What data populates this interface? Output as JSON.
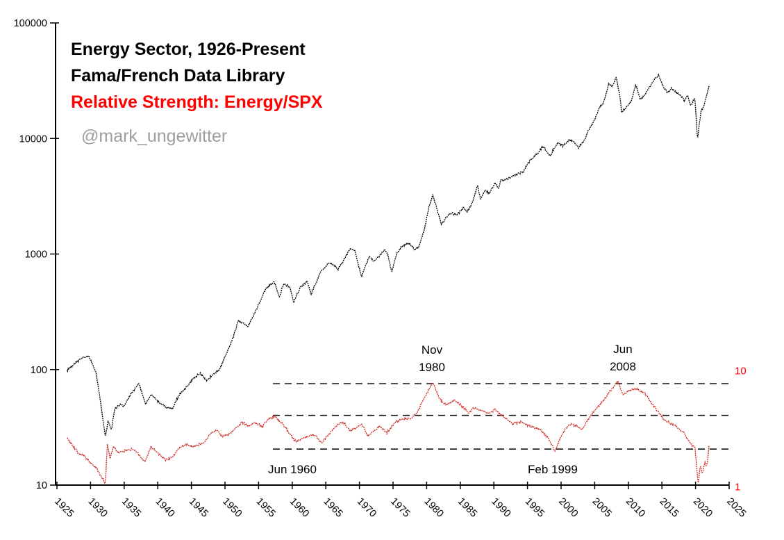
{
  "header": {
    "title_line1": "Energy Sector, 1926-Present",
    "title_line2": "Fama/French Data Library",
    "title_line3": "Relative Strength: Energy/SPX",
    "watermark": "@mark_ungewitter",
    "title_color": "#000000",
    "relative_strength_color": "#ff0000",
    "watermark_color": "#9e9e9e"
  },
  "chart_data": {
    "type": "line",
    "title": "Energy Sector, 1926-Present",
    "subtitle": "Fama/French Data Library",
    "overlay_title": "Relative Strength: Energy/SPX",
    "grid": "off",
    "legend": "none",
    "x_axis": {
      "scale": "linear",
      "range": [
        1925,
        2025
      ],
      "ticks": [
        {
          "v": 1925,
          "label": "1925"
        },
        {
          "v": 1930,
          "label": "1930"
        },
        {
          "v": 1935,
          "label": "1935"
        },
        {
          "v": 1940,
          "label": "1940"
        },
        {
          "v": 1945,
          "label": "1945"
        },
        {
          "v": 1950,
          "label": "1950"
        },
        {
          "v": 1955,
          "label": "1955"
        },
        {
          "v": 1960,
          "label": "1960"
        },
        {
          "v": 1965,
          "label": "1965"
        },
        {
          "v": 1970,
          "label": "1970"
        },
        {
          "v": 1975,
          "label": "1975"
        },
        {
          "v": 1980,
          "label": "1980"
        },
        {
          "v": 1985,
          "label": "1985"
        },
        {
          "v": 1990,
          "label": "1990"
        },
        {
          "v": 1995,
          "label": "1995"
        },
        {
          "v": 2000,
          "label": "2000"
        },
        {
          "v": 2005,
          "label": "2005"
        },
        {
          "v": 2010,
          "label": "2010"
        },
        {
          "v": 2015,
          "label": "2015"
        },
        {
          "v": 2020,
          "label": "2020"
        },
        {
          "v": 2025,
          "label": "2025"
        }
      ]
    },
    "y_axis_left": {
      "scale": "log",
      "range": [
        10,
        100000
      ],
      "ticks": [
        {
          "v": 10,
          "label": "10"
        },
        {
          "v": 100,
          "label": "100"
        },
        {
          "v": 1000,
          "label": "1000"
        },
        {
          "v": 10000,
          "label": "10000"
        },
        {
          "v": 100000,
          "label": "100000"
        }
      ],
      "color": "#000000"
    },
    "y_axis_right": {
      "scale": "log",
      "range": [
        1,
        10
      ],
      "ticks": [
        {
          "v": 10,
          "label": "10"
        },
        {
          "v": 1,
          "label": "1"
        }
      ],
      "color": "#ff0000"
    },
    "reference_lines": {
      "axis": "right",
      "style": "dashed",
      "color": "#111111",
      "values": [
        7.7,
        4.1,
        2.1
      ]
    },
    "series": [
      {
        "name": "Energy Sector cumulative return (left axis)",
        "axis": "left",
        "color": "#000000",
        "points": [
          [
            1926.5,
            98
          ],
          [
            1927.2,
            107
          ],
          [
            1928.0,
            118
          ],
          [
            1929.0,
            128
          ],
          [
            1929.7,
            131
          ],
          [
            1930.3,
            112
          ],
          [
            1930.8,
            95
          ],
          [
            1931.5,
            52
          ],
          [
            1932.2,
            26
          ],
          [
            1932.6,
            36
          ],
          [
            1933.1,
            30
          ],
          [
            1933.6,
            46
          ],
          [
            1934.5,
            50
          ],
          [
            1935.0,
            48
          ],
          [
            1936.0,
            62
          ],
          [
            1937.2,
            76
          ],
          [
            1938.2,
            50
          ],
          [
            1939.0,
            61
          ],
          [
            1939.5,
            57
          ],
          [
            1940.2,
            52
          ],
          [
            1941.2,
            47
          ],
          [
            1942.2,
            46
          ],
          [
            1943.2,
            61
          ],
          [
            1944.2,
            70
          ],
          [
            1945.2,
            82
          ],
          [
            1946.3,
            93
          ],
          [
            1947.3,
            80
          ],
          [
            1948.3,
            92
          ],
          [
            1949.2,
            100
          ],
          [
            1950.3,
            140
          ],
          [
            1951.0,
            175
          ],
          [
            1952.0,
            265
          ],
          [
            1952.7,
            250
          ],
          [
            1953.4,
            233
          ],
          [
            1954.8,
            344
          ],
          [
            1956.1,
            500
          ],
          [
            1957.3,
            575
          ],
          [
            1958.1,
            424
          ],
          [
            1958.7,
            550
          ],
          [
            1959.7,
            514
          ],
          [
            1960.2,
            380
          ],
          [
            1961.2,
            520
          ],
          [
            1962.2,
            580
          ],
          [
            1962.8,
            450
          ],
          [
            1963.5,
            560
          ],
          [
            1964.2,
            700
          ],
          [
            1965.6,
            850
          ],
          [
            1966.8,
            740
          ],
          [
            1967.9,
            935
          ],
          [
            1968.7,
            1120
          ],
          [
            1969.3,
            1070
          ],
          [
            1970.3,
            640
          ],
          [
            1971.5,
            960
          ],
          [
            1972.1,
            850
          ],
          [
            1973.0,
            960
          ],
          [
            1973.7,
            1100
          ],
          [
            1974.2,
            1000
          ],
          [
            1974.8,
            690
          ],
          [
            1975.5,
            1000
          ],
          [
            1976.2,
            1150
          ],
          [
            1977.3,
            1250
          ],
          [
            1978.2,
            1100
          ],
          [
            1978.8,
            1150
          ],
          [
            1979.6,
            1600
          ],
          [
            1980.3,
            2500
          ],
          [
            1980.9,
            3250
          ],
          [
            1981.5,
            2500
          ],
          [
            1982.2,
            1800
          ],
          [
            1983.4,
            2250
          ],
          [
            1984.5,
            2200
          ],
          [
            1985.5,
            2500
          ],
          [
            1986.0,
            2300
          ],
          [
            1986.8,
            2800
          ],
          [
            1987.6,
            3900
          ],
          [
            1988.0,
            3000
          ],
          [
            1988.7,
            3550
          ],
          [
            1989.3,
            3350
          ],
          [
            1990.2,
            4100
          ],
          [
            1990.7,
            3700
          ],
          [
            1991.0,
            4400
          ],
          [
            1992.0,
            4450
          ],
          [
            1993.3,
            4900
          ],
          [
            1994.3,
            5100
          ],
          [
            1995.4,
            6500
          ],
          [
            1996.4,
            7300
          ],
          [
            1997.3,
            8600
          ],
          [
            1998.4,
            7000
          ],
          [
            1999.0,
            8300
          ],
          [
            1999.6,
            9200
          ],
          [
            2000.3,
            8600
          ],
          [
            2001.2,
            9800
          ],
          [
            2002.0,
            9200
          ],
          [
            2002.6,
            8350
          ],
          [
            2003.5,
            9800
          ],
          [
            2004.1,
            11900
          ],
          [
            2005.0,
            14500
          ],
          [
            2005.7,
            18500
          ],
          [
            2006.3,
            20000
          ],
          [
            2007.1,
            30000
          ],
          [
            2007.6,
            28000
          ],
          [
            2008.2,
            34000
          ],
          [
            2008.8,
            22000
          ],
          [
            2009.0,
            16800
          ],
          [
            2009.8,
            19200
          ],
          [
            2010.4,
            20600
          ],
          [
            2011.1,
            29400
          ],
          [
            2011.8,
            21800
          ],
          [
            2012.5,
            24000
          ],
          [
            2013.1,
            27400
          ],
          [
            2013.9,
            32500
          ],
          [
            2014.5,
            35600
          ],
          [
            2015.2,
            28200
          ],
          [
            2015.8,
            25100
          ],
          [
            2016.4,
            26900
          ],
          [
            2017.1,
            25100
          ],
          [
            2017.9,
            23400
          ],
          [
            2018.3,
            21300
          ],
          [
            2018.8,
            23400
          ],
          [
            2019.3,
            19200
          ],
          [
            2019.9,
            22500
          ],
          [
            2020.3,
            9900
          ],
          [
            2020.8,
            17200
          ],
          [
            2021.1,
            18000
          ],
          [
            2021.5,
            21300
          ],
          [
            2022.0,
            28800
          ]
        ]
      },
      {
        "name": "Relative Strength Energy/SPX (right axis)",
        "axis": "right",
        "color": "#cf2a24",
        "points": [
          [
            1926.5,
            2.6
          ],
          [
            1927.3,
            2.25
          ],
          [
            1928.2,
            1.95
          ],
          [
            1929.2,
            1.8
          ],
          [
            1930.0,
            1.6
          ],
          [
            1930.8,
            1.45
          ],
          [
            1931.3,
            1.3
          ],
          [
            1932.2,
            1.07
          ],
          [
            1932.5,
            2.3
          ],
          [
            1932.9,
            1.75
          ],
          [
            1933.4,
            2.2
          ],
          [
            1934.2,
            1.95
          ],
          [
            1935.2,
            2.05
          ],
          [
            1936.3,
            2.1
          ],
          [
            1937.3,
            1.85
          ],
          [
            1938.1,
            1.62
          ],
          [
            1939.0,
            2.2
          ],
          [
            1940.0,
            1.95
          ],
          [
            1941.2,
            1.7
          ],
          [
            1942.2,
            1.8
          ],
          [
            1943.2,
            2.15
          ],
          [
            1944.2,
            2.3
          ],
          [
            1945.2,
            2.2
          ],
          [
            1946.2,
            2.3
          ],
          [
            1946.9,
            2.38
          ],
          [
            1948.0,
            2.9
          ],
          [
            1948.8,
            3.1
          ],
          [
            1949.6,
            2.7
          ],
          [
            1950.5,
            2.8
          ],
          [
            1951.7,
            3.2
          ],
          [
            1952.5,
            3.6
          ],
          [
            1953.4,
            3.35
          ],
          [
            1954.4,
            3.55
          ],
          [
            1955.5,
            3.3
          ],
          [
            1956.5,
            3.8
          ],
          [
            1957.3,
            4.05
          ],
          [
            1958.4,
            3.55
          ],
          [
            1959.2,
            3.1
          ],
          [
            1960.5,
            2.45
          ],
          [
            1961.3,
            2.56
          ],
          [
            1962.2,
            2.7
          ],
          [
            1963.2,
            2.8
          ],
          [
            1964.4,
            2.4
          ],
          [
            1965.8,
            3.0
          ],
          [
            1967.0,
            3.5
          ],
          [
            1967.6,
            3.6
          ],
          [
            1968.6,
            3.0
          ],
          [
            1969.5,
            3.2
          ],
          [
            1970.3,
            3.45
          ],
          [
            1971.3,
            2.74
          ],
          [
            1973.0,
            3.3
          ],
          [
            1974.1,
            2.9
          ],
          [
            1975.4,
            3.6
          ],
          [
            1976.4,
            3.85
          ],
          [
            1977.5,
            3.8
          ],
          [
            1978.5,
            4.25
          ],
          [
            1979.6,
            5.7
          ],
          [
            1980.9,
            7.9
          ],
          [
            1981.9,
            5.75
          ],
          [
            1982.9,
            5.0
          ],
          [
            1984.2,
            5.6
          ],
          [
            1985.1,
            5.0
          ],
          [
            1986.3,
            4.25
          ],
          [
            1986.9,
            4.75
          ],
          [
            1987.8,
            4.6
          ],
          [
            1989.2,
            4.25
          ],
          [
            1990.2,
            4.6
          ],
          [
            1991.2,
            4.1
          ],
          [
            1992.7,
            3.45
          ],
          [
            1994.0,
            3.6
          ],
          [
            1995.4,
            3.3
          ],
          [
            1996.9,
            3.1
          ],
          [
            1998.1,
            2.6
          ],
          [
            1999.1,
            2.0
          ],
          [
            2000.2,
            2.9
          ],
          [
            2001.3,
            3.45
          ],
          [
            2002.3,
            3.35
          ],
          [
            2003.1,
            3.1
          ],
          [
            2004.4,
            4.1
          ],
          [
            2005.4,
            4.8
          ],
          [
            2006.4,
            5.6
          ],
          [
            2007.3,
            6.6
          ],
          [
            2008.45,
            8.1
          ],
          [
            2009.2,
            6.2
          ],
          [
            2010.2,
            6.7
          ],
          [
            2011.3,
            7.0
          ],
          [
            2012.6,
            6.2
          ],
          [
            2013.7,
            5.0
          ],
          [
            2014.7,
            4.25
          ],
          [
            2015.2,
            3.8
          ],
          [
            2016.7,
            3.4
          ],
          [
            2018.3,
            2.9
          ],
          [
            2019.3,
            2.3
          ],
          [
            2019.9,
            2.2
          ],
          [
            2020.4,
            1.05
          ],
          [
            2020.7,
            1.5
          ],
          [
            2021.0,
            1.3
          ],
          [
            2021.4,
            1.6
          ],
          [
            2021.7,
            1.5
          ],
          [
            2022.0,
            2.25
          ]
        ]
      }
    ],
    "annotations": [
      {
        "line1": "Nov",
        "line2": "1980"
      },
      {
        "line1": "Jun",
        "line2": "2008"
      },
      {
        "line1": "Jun 1960",
        "line2": ""
      },
      {
        "line1": "Feb 1999",
        "line2": ""
      }
    ]
  }
}
